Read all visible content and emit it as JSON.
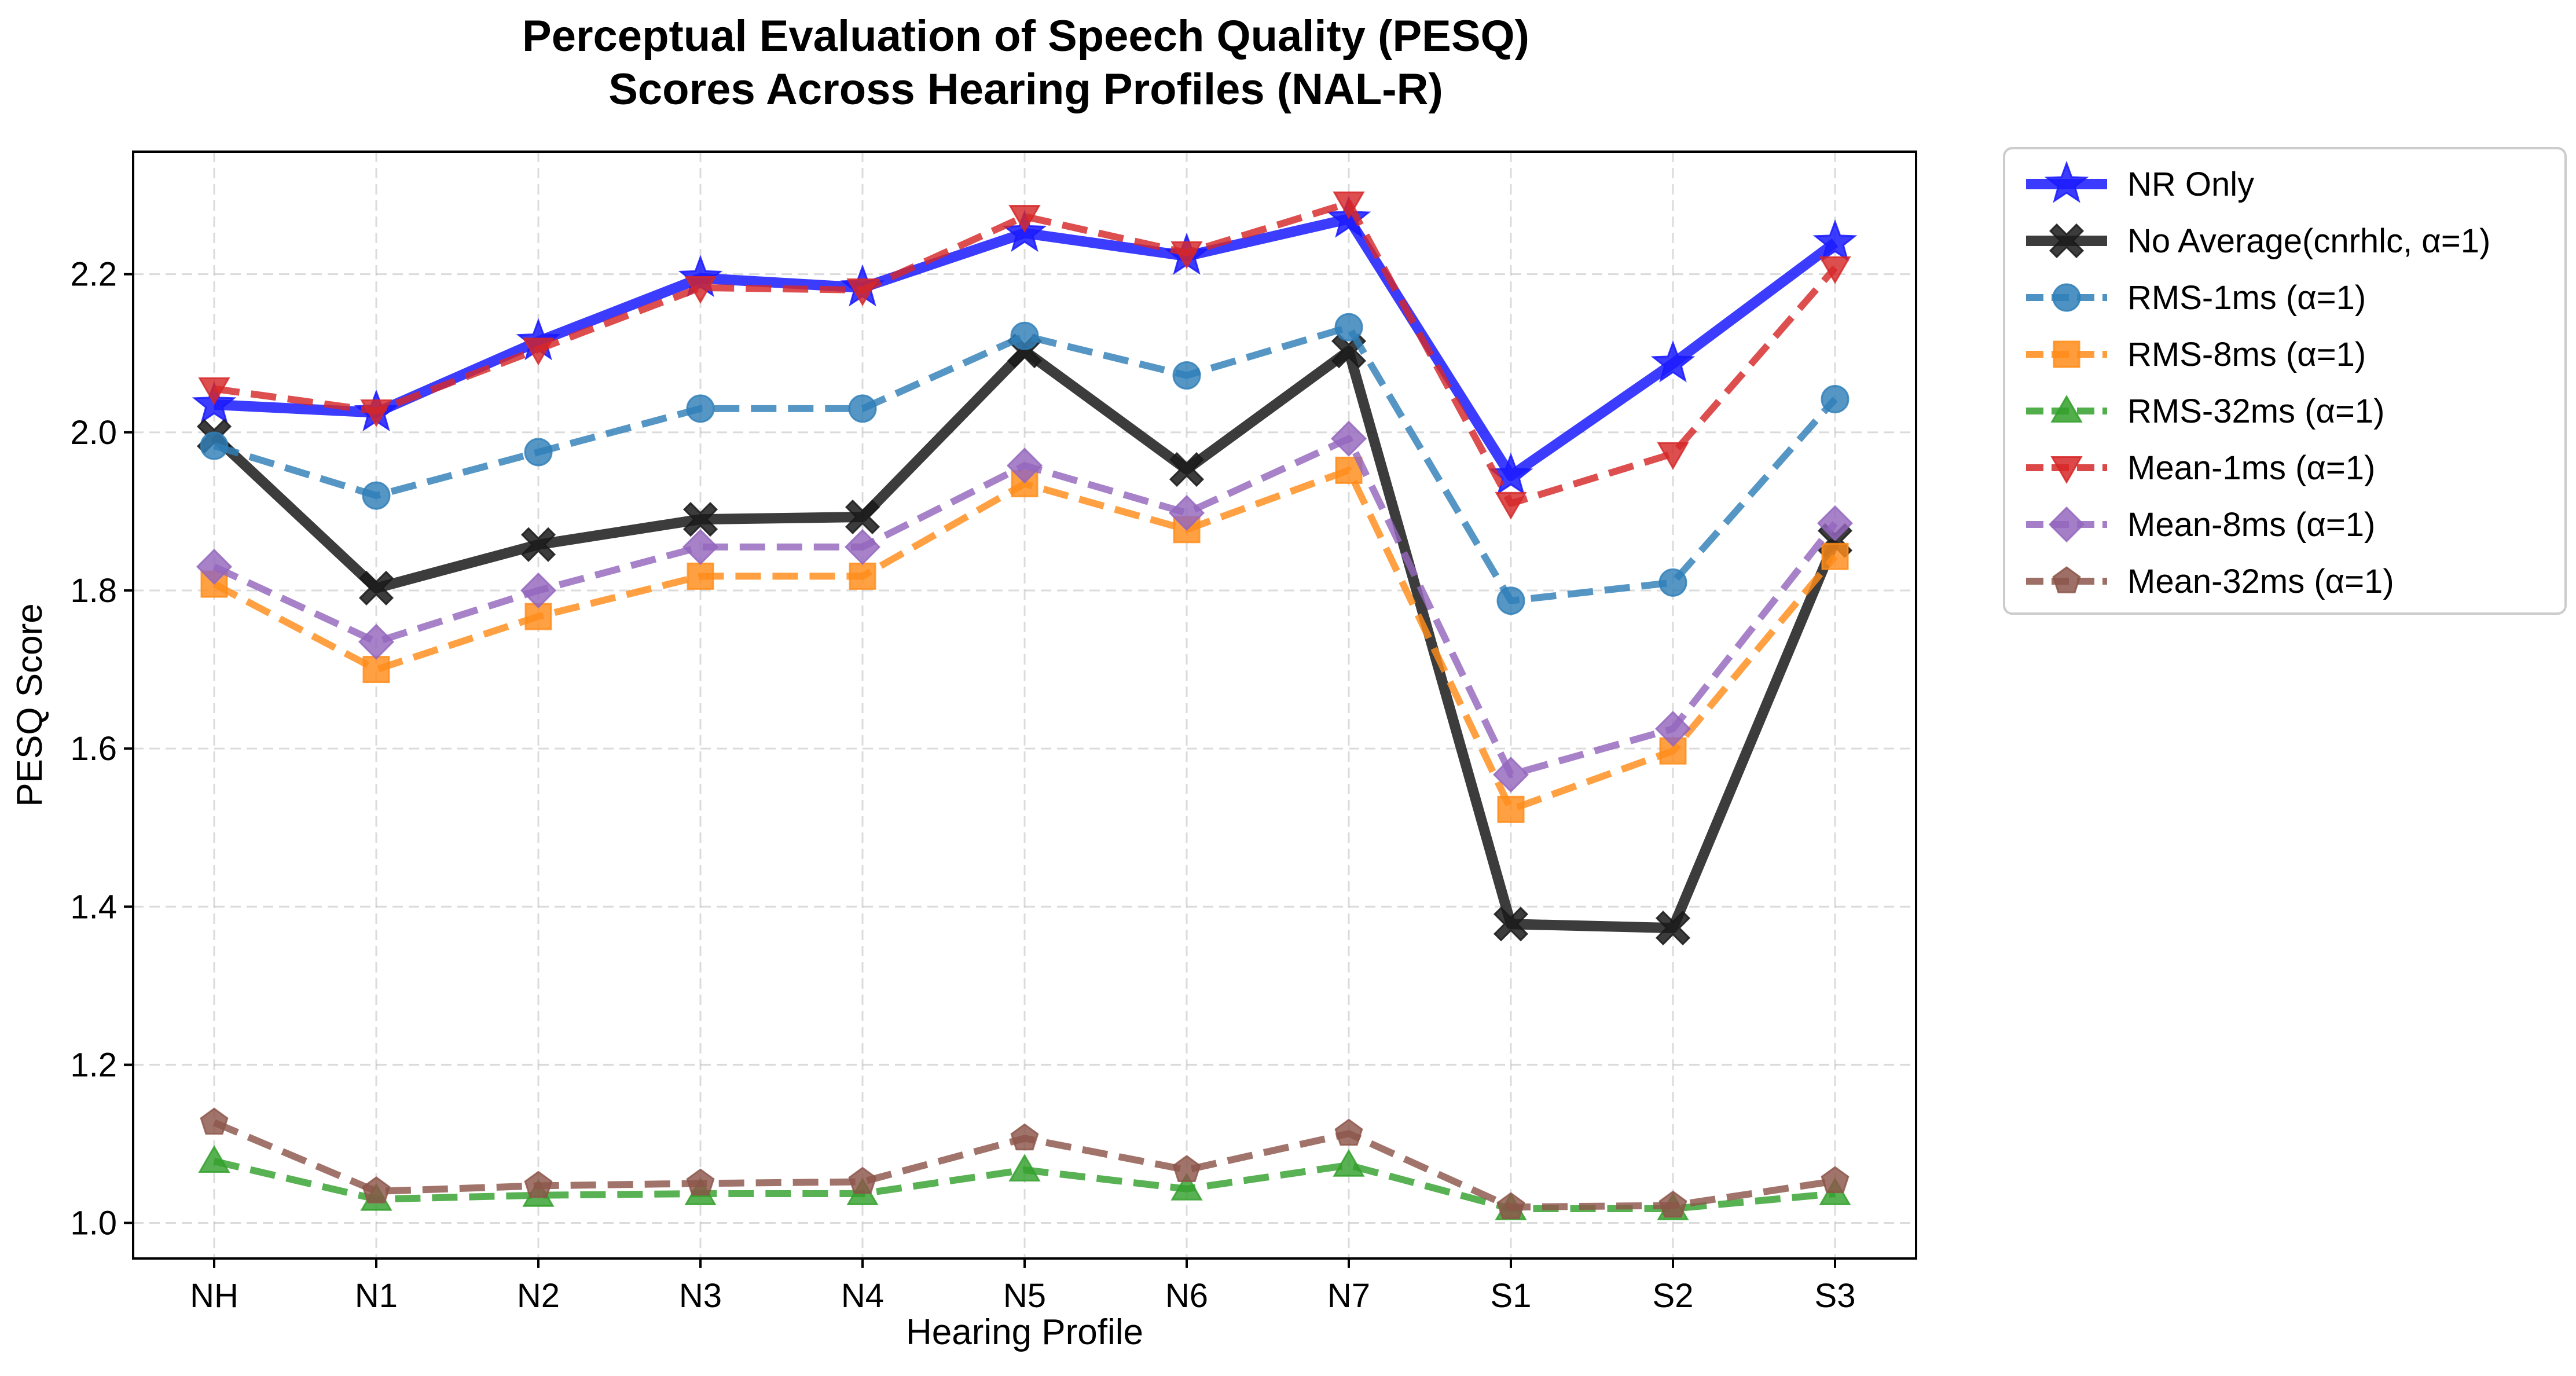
{
  "chart_data": {
    "type": "line",
    "title_lines": [
      "Perceptual Evaluation of Speech Quality (PESQ)",
      "Scores Across Hearing Profiles (NAL-R)"
    ],
    "xlabel": "Hearing Profile",
    "ylabel": "PESQ Score",
    "categories": [
      "NH",
      "N1",
      "N2",
      "N3",
      "N4",
      "N5",
      "N6",
      "N7",
      "S1",
      "S2",
      "S3"
    ],
    "ylim": [
      0.955,
      2.355
    ],
    "yticks": [
      1.0,
      1.2,
      1.4,
      1.6,
      1.8,
      2.0,
      2.2
    ],
    "ytick_labels": [
      "1.0",
      "1.2",
      "1.4",
      "1.6",
      "1.8",
      "2.0",
      "2.2"
    ],
    "grid": true,
    "legend_position": "outside-right-top",
    "series": [
      {
        "name": "NR Only",
        "color": "#1a1aff",
        "dashed": false,
        "marker": "star",
        "width": 18,
        "values": [
          2.035,
          2.025,
          2.115,
          2.195,
          2.183,
          2.252,
          2.223,
          2.27,
          1.945,
          2.087,
          2.24
        ]
      },
      {
        "name": "No Average(cnrhlc, α=1)",
        "color": "#1a1a1a",
        "dashed": false,
        "marker": "x",
        "width": 18,
        "values": [
          1.995,
          1.803,
          1.858,
          1.89,
          1.893,
          2.103,
          1.953,
          2.103,
          1.378,
          1.373,
          1.863
        ]
      },
      {
        "name": "RMS-1ms (α=1)",
        "color": "#2f7fb8",
        "dashed": true,
        "marker": "circle",
        "width": 12,
        "values": [
          1.983,
          1.92,
          1.975,
          2.03,
          2.03,
          2.122,
          2.072,
          2.133,
          1.787,
          1.81,
          2.042
        ]
      },
      {
        "name": "RMS-8ms (α=1)",
        "color": "#ff8c1a",
        "dashed": true,
        "marker": "square",
        "width": 12,
        "values": [
          1.808,
          1.7,
          1.767,
          1.818,
          1.818,
          1.935,
          1.877,
          1.952,
          1.523,
          1.597,
          1.843
        ]
      },
      {
        "name": "RMS-32ms (α=1)",
        "color": "#33a02c",
        "dashed": true,
        "marker": "triangle-up",
        "width": 12,
        "values": [
          1.078,
          1.03,
          1.035,
          1.037,
          1.037,
          1.067,
          1.043,
          1.073,
          1.018,
          1.018,
          1.037
        ]
      },
      {
        "name": "Mean-1ms (α=1)",
        "color": "#d62728",
        "dashed": true,
        "marker": "triangle-down",
        "width": 12,
        "values": [
          2.055,
          2.027,
          2.105,
          2.183,
          2.18,
          2.273,
          2.227,
          2.29,
          1.91,
          1.973,
          2.208
        ]
      },
      {
        "name": "Mean-8ms (α=1)",
        "color": "#9467bd",
        "dashed": true,
        "marker": "diamond",
        "width": 12,
        "values": [
          1.83,
          1.735,
          1.8,
          1.855,
          1.855,
          1.958,
          1.898,
          1.992,
          1.567,
          1.625,
          1.885
        ]
      },
      {
        "name": "Mean-32ms (α=1)",
        "color": "#8c564b",
        "dashed": true,
        "marker": "pentagon",
        "width": 12,
        "values": [
          1.127,
          1.04,
          1.047,
          1.05,
          1.052,
          1.107,
          1.067,
          1.113,
          1.02,
          1.022,
          1.053
        ]
      }
    ]
  }
}
